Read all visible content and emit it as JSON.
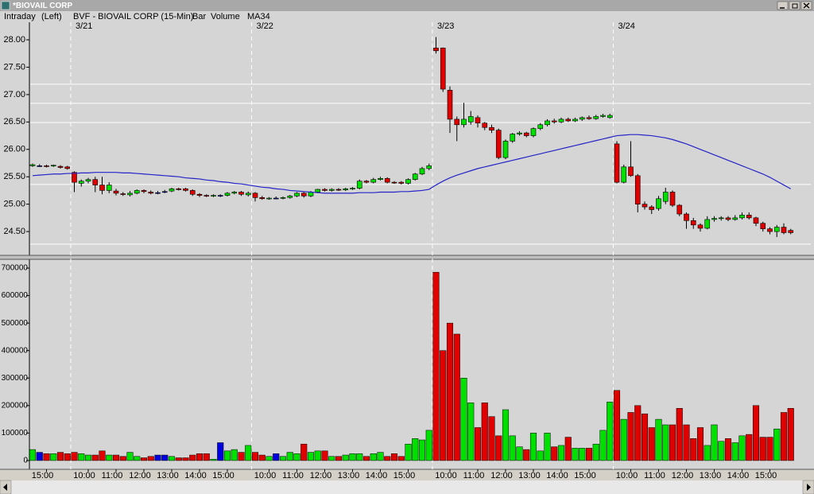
{
  "window_title": "*BIOVAIL CORP",
  "header": {
    "view": "Intraday",
    "axis": "(Left)",
    "symbol": "BVF - BIOVAIL CORP (15-Min)",
    "style": "Bar"
  },
  "chart_data": [
    {
      "type": "candlestick",
      "up_color": "#00e000",
      "down_color": "#e00000",
      "flat_color": "#0000e0",
      "sessions": [
        {
          "label": "3/21",
          "start": 6
        },
        {
          "label": "3/22",
          "start": 32
        },
        {
          "label": "3/23",
          "start": 58
        },
        {
          "label": "3/24",
          "start": 84
        }
      ],
      "open": [
        25.7,
        25.7,
        25.7,
        25.7,
        25.69,
        25.68,
        25.58,
        25.38,
        25.42,
        25.45,
        25.35,
        25.25,
        25.24,
        25.19,
        25.17,
        25.2,
        25.25,
        25.22,
        25.21,
        25.23,
        25.24,
        25.28,
        25.28,
        25.25,
        25.18,
        25.16,
        25.15,
        25.16,
        25.16,
        25.2,
        25.22,
        25.17,
        25.2,
        25.12,
        25.1,
        25.11,
        25.11,
        25.12,
        25.15,
        25.2,
        25.15,
        25.22,
        25.27,
        25.25,
        25.27,
        25.26,
        25.28,
        25.29,
        25.42,
        25.4,
        25.45,
        25.47,
        25.4,
        25.4,
        25.38,
        25.45,
        25.55,
        25.65,
        27.85,
        27.85,
        27.08,
        26.55,
        26.45,
        26.5,
        26.58,
        26.48,
        26.4,
        26.35,
        25.85,
        26.15,
        26.28,
        26.3,
        26.25,
        26.38,
        26.45,
        26.52,
        26.5,
        26.55,
        26.52,
        26.55,
        26.58,
        26.56,
        26.6,
        26.58,
        26.1,
        25.4,
        25.68,
        25.52,
        25.0,
        24.95,
        24.92,
        25.05,
        25.22,
        24.98,
        24.82,
        24.7,
        24.62,
        24.56,
        24.72,
        24.74,
        24.75,
        24.72,
        24.75,
        24.8,
        24.75,
        24.65,
        24.55,
        24.5,
        24.58,
        24.52
      ],
      "high": [
        25.74,
        25.73,
        25.72,
        25.72,
        25.71,
        25.7,
        25.6,
        25.45,
        25.48,
        25.5,
        25.5,
        25.4,
        25.28,
        25.22,
        25.24,
        25.27,
        25.27,
        25.25,
        25.24,
        25.26,
        25.3,
        25.3,
        25.3,
        25.27,
        25.2,
        25.18,
        25.18,
        25.18,
        25.22,
        25.24,
        25.24,
        25.23,
        25.22,
        25.15,
        25.13,
        25.14,
        25.14,
        25.17,
        25.22,
        25.22,
        25.24,
        25.28,
        25.29,
        25.29,
        25.29,
        25.3,
        25.31,
        25.45,
        25.44,
        25.48,
        25.5,
        25.49,
        25.42,
        25.42,
        25.47,
        25.57,
        25.68,
        25.74,
        28.05,
        27.86,
        27.15,
        26.6,
        26.85,
        26.7,
        26.62,
        26.5,
        26.45,
        26.38,
        26.18,
        26.3,
        26.33,
        26.32,
        26.4,
        26.48,
        26.55,
        26.56,
        26.58,
        26.58,
        26.58,
        26.6,
        26.62,
        26.63,
        26.65,
        26.65,
        26.15,
        25.72,
        26.15,
        25.55,
        25.05,
        24.98,
        25.15,
        25.3,
        25.25,
        25.0,
        24.85,
        24.75,
        24.65,
        24.78,
        24.78,
        24.78,
        24.78,
        24.8,
        24.85,
        24.85,
        24.77,
        24.68,
        24.58,
        24.62,
        24.65,
        24.55
      ],
      "low": [
        25.68,
        25.68,
        25.67,
        25.68,
        25.65,
        25.63,
        25.22,
        25.32,
        25.38,
        25.22,
        25.18,
        25.2,
        25.16,
        25.15,
        25.14,
        25.18,
        25.2,
        25.18,
        25.18,
        25.2,
        25.22,
        25.25,
        25.23,
        25.15,
        25.13,
        25.13,
        25.13,
        25.13,
        25.14,
        25.18,
        25.15,
        25.14,
        25.05,
        25.08,
        25.08,
        25.09,
        25.09,
        25.1,
        25.13,
        25.12,
        25.13,
        25.2,
        25.23,
        25.23,
        25.24,
        25.24,
        25.26,
        25.27,
        25.38,
        25.38,
        25.43,
        25.38,
        25.37,
        25.36,
        25.36,
        25.43,
        25.53,
        25.62,
        27.75,
        27.05,
        26.3,
        26.15,
        26.4,
        26.45,
        26.4,
        26.35,
        26.3,
        25.82,
        25.82,
        26.12,
        26.25,
        26.22,
        26.22,
        26.35,
        26.42,
        26.47,
        26.48,
        26.5,
        26.5,
        26.52,
        26.54,
        26.54,
        26.58,
        26.56,
        25.38,
        25.38,
        25.5,
        24.85,
        24.9,
        24.82,
        24.88,
        25.0,
        24.95,
        24.78,
        24.55,
        24.55,
        24.5,
        24.54,
        24.68,
        24.7,
        24.69,
        24.7,
        24.72,
        24.72,
        24.6,
        24.5,
        24.45,
        24.4,
        24.45,
        24.45
      ],
      "close": [
        25.72,
        25.7,
        25.69,
        25.71,
        25.67,
        25.65,
        25.4,
        25.42,
        25.45,
        25.35,
        25.25,
        25.35,
        25.2,
        25.18,
        25.2,
        25.25,
        25.23,
        25.2,
        25.21,
        25.23,
        25.28,
        25.27,
        25.25,
        25.18,
        25.16,
        25.15,
        25.16,
        25.16,
        25.2,
        25.22,
        25.18,
        25.2,
        25.12,
        25.1,
        25.11,
        25.11,
        25.12,
        25.15,
        25.2,
        25.15,
        25.22,
        25.27,
        25.25,
        25.27,
        25.26,
        25.28,
        25.29,
        25.42,
        25.4,
        25.45,
        25.47,
        25.4,
        25.39,
        25.38,
        25.45,
        25.55,
        25.65,
        25.7,
        27.8,
        27.1,
        26.55,
        26.45,
        26.55,
        26.6,
        26.48,
        26.4,
        26.35,
        25.85,
        26.15,
        26.28,
        26.3,
        26.25,
        26.38,
        26.45,
        26.52,
        26.5,
        26.55,
        26.52,
        26.55,
        26.58,
        26.56,
        26.6,
        26.62,
        26.62,
        25.4,
        25.68,
        25.52,
        25.0,
        24.95,
        24.9,
        25.1,
        25.22,
        24.98,
        24.82,
        24.7,
        24.62,
        24.56,
        24.72,
        24.74,
        24.75,
        24.72,
        24.75,
        24.8,
        24.75,
        24.65,
        24.55,
        24.5,
        24.58,
        24.48,
        24.48
      ],
      "series": [
        {
          "name": "MA34",
          "color": "#2424c8",
          "values": [
            25.52,
            25.53,
            25.54,
            25.55,
            25.55,
            25.56,
            25.56,
            25.57,
            25.57,
            25.58,
            25.58,
            25.58,
            25.58,
            25.57,
            25.57,
            25.56,
            25.55,
            25.54,
            25.53,
            25.52,
            25.51,
            25.5,
            25.48,
            25.47,
            25.46,
            25.44,
            25.43,
            25.41,
            25.4,
            25.38,
            25.37,
            25.35,
            25.33,
            25.31,
            25.3,
            25.28,
            25.27,
            25.25,
            25.24,
            25.23,
            25.22,
            25.21,
            25.2,
            25.2,
            25.2,
            25.2,
            25.2,
            25.21,
            25.21,
            25.21,
            25.22,
            25.22,
            25.22,
            25.23,
            25.23,
            25.24,
            25.25,
            25.27,
            25.35,
            25.42,
            25.48,
            25.53,
            25.57,
            25.61,
            25.65,
            25.68,
            25.71,
            25.74,
            25.77,
            25.8,
            25.83,
            25.86,
            25.89,
            25.92,
            25.95,
            25.98,
            26.01,
            26.04,
            26.07,
            26.1,
            26.13,
            26.16,
            26.19,
            26.22,
            26.25,
            26.26,
            26.27,
            26.27,
            26.26,
            26.25,
            26.23,
            26.21,
            26.18,
            26.14,
            26.1,
            26.05,
            26.0,
            25.95,
            25.9,
            25.85,
            25.8,
            25.75,
            25.7,
            25.65,
            25.6,
            25.55,
            25.49,
            25.42,
            25.35,
            25.28
          ]
        }
      ],
      "hlines": [
        27.19,
        26.84,
        26.49,
        25.36,
        24.27
      ],
      "ylim": [
        24.08,
        28.32
      ],
      "yticks": [
        {
          "value": 24.5,
          "label": "24.50"
        },
        {
          "value": 25,
          "label": "25.00"
        },
        {
          "value": 25.5,
          "label": "25.50"
        },
        {
          "value": 26,
          "label": "26.00"
        },
        {
          "value": 26.5,
          "label": "26.50"
        },
        {
          "value": 27,
          "label": "27.00"
        },
        {
          "value": 27.5,
          "label": "27.50"
        },
        {
          "value": 28,
          "label": "28.00"
        }
      ]
    },
    {
      "type": "bar",
      "categories": [
        null,
        null,
        "15:00",
        null,
        null,
        null,
        null,
        null,
        "10:00",
        null,
        null,
        null,
        "11:00",
        null,
        null,
        null,
        "12:00",
        null,
        null,
        null,
        "13:00",
        null,
        null,
        null,
        "14:00",
        null,
        null,
        null,
        "15:00",
        null,
        null,
        null,
        null,
        null,
        "10:00",
        null,
        null,
        null,
        "11:00",
        null,
        null,
        null,
        "12:00",
        null,
        null,
        null,
        "13:00",
        null,
        null,
        null,
        "14:00",
        null,
        null,
        null,
        "15:00",
        null,
        null,
        null,
        null,
        null,
        "10:00",
        null,
        null,
        null,
        "11:00",
        null,
        null,
        null,
        "12:00",
        null,
        null,
        null,
        "13:00",
        null,
        null,
        null,
        "14:00",
        null,
        null,
        null,
        "15:00",
        null,
        null,
        null,
        null,
        null,
        "10:00",
        null,
        null,
        null,
        "11:00",
        null,
        null,
        null,
        "12:00",
        null,
        null,
        null,
        "13:00",
        null,
        null,
        null,
        "14:00",
        null,
        null,
        null,
        "15:00",
        null,
        null,
        null
      ],
      "series": [
        {
          "name": "Volume",
          "color": "#2424c8",
          "values": [
            40000,
            30000,
            25000,
            25000,
            30000,
            25000,
            30000,
            25000,
            20000,
            20000,
            35000,
            20000,
            20000,
            15000,
            30000,
            15000,
            10000,
            15000,
            20000,
            20000,
            15000,
            10000,
            10000,
            20000,
            25000,
            25000,
            5000,
            65000,
            35000,
            40000,
            30000,
            55000,
            30000,
            20000,
            15000,
            25000,
            15000,
            30000,
            25000,
            60000,
            30000,
            35000,
            35000,
            15000,
            15000,
            20000,
            25000,
            25000,
            15000,
            25000,
            30000,
            15000,
            25000,
            15000,
            60000,
            80000,
            75000,
            110000,
            685000,
            400000,
            500000,
            460000,
            300000,
            210000,
            120000,
            210000,
            160000,
            90000,
            185000,
            90000,
            50000,
            40000,
            100000,
            35000,
            100000,
            50000,
            55000,
            85000,
            45000,
            45000,
            45000,
            60000,
            110000,
            213000,
            255000,
            150000,
            175000,
            200000,
            170000,
            120000,
            150000,
            130000,
            130000,
            190000,
            130000,
            80000,
            120000,
            55000,
            130000,
            70000,
            80000,
            65000,
            90000,
            95000,
            200000,
            85000,
            85000,
            115000,
            175000,
            190000
          ]
        }
      ],
      "ylim": [
        -32000,
        729000
      ],
      "yticks": [
        0,
        100000,
        200000,
        300000,
        400000,
        500000,
        600000,
        700000
      ]
    }
  ]
}
